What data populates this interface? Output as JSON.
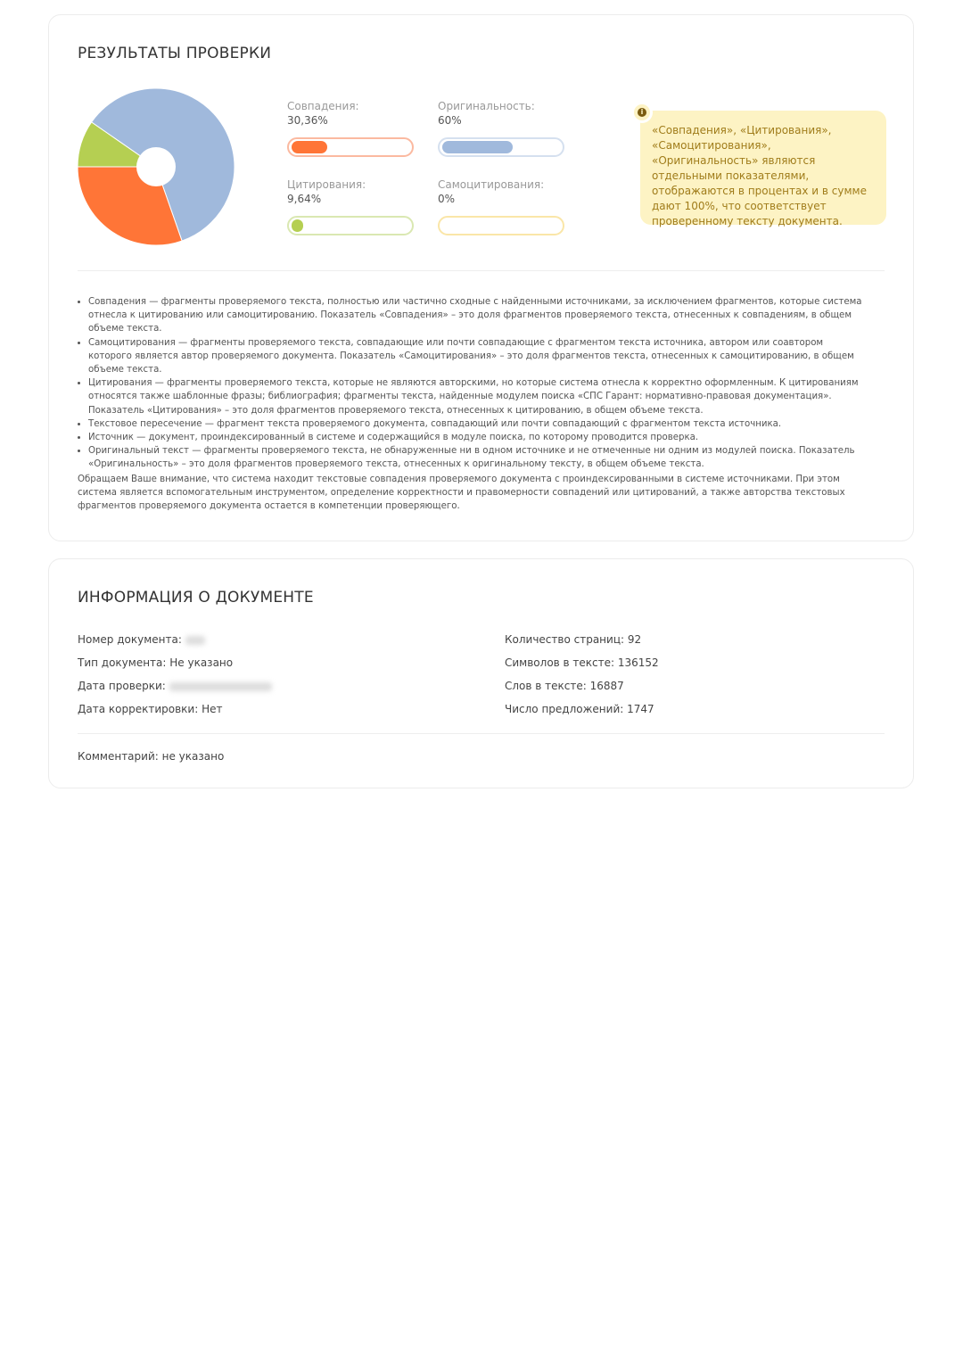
{
  "results": {
    "title": "РЕЗУЛЬТАТЫ ПРОВЕРКИ",
    "metrics": [
      {
        "label": "Совпадения:",
        "value": "30,36%",
        "percent": 30.36,
        "color": "#ff7537",
        "border": "#fbb9a0"
      },
      {
        "label": "Оригинальность:",
        "value": "60%",
        "percent": 60,
        "color": "#a0b9dc",
        "border": "#d5e0ef"
      },
      {
        "label": "Цитирования:",
        "value": "9,64%",
        "percent": 9.64,
        "color": "#b5cf52",
        "border": "#dae8b2"
      },
      {
        "label": "Самоцитирования:",
        "value": "0%",
        "percent": 0,
        "color": "#f7d46b",
        "border": "#fae6a8"
      }
    ],
    "note": "«Совпадения», «Цитирования», «Самоцитирования», «Оригинальность» являются отдельными показателями, отображаются в процентах и в сумме дают 100%, что соответствует проверенному тексту документа.",
    "note_icon": "info-icon",
    "definitions": [
      "Совпадения — фрагменты проверяемого текста, полностью или частично сходные с найденными источниками, за исключением фрагментов, которые система отнесла к цитированию или самоцитированию. Показатель «Совпадения» – это доля фрагментов проверяемого текста, отнесенных к совпадениям, в общем объеме текста.",
      "Самоцитирования — фрагменты проверяемого текста, совпадающие или почти совпадающие с фрагментом текста источника, автором или соавтором которого является автор проверяемого документа. Показатель «Самоцитирования» – это доля фрагментов текста, отнесенных к самоцитированию, в общем объеме текста.",
      "Цитирования — фрагменты проверяемого текста, которые не являются авторскими, но которые система отнесла к корректно оформленным. К цитированиям относятся также шаблонные фразы; библиография; фрагменты текста, найденные модулем поиска «СПС Гарант: нормативно-правовая документация». Показатель «Цитирования» – это доля фрагментов проверяемого текста, отнесенных к цитированию, в общем объеме текста.",
      "Текстовое пересечение — фрагмент текста проверяемого документа, совпадающий или почти совпадающий с фрагментом текста источника.",
      "Источник — документ, проиндексированный в системе и содержащийся в модуле поиска, по которому проводится проверка.",
      "Оригинальный текст — фрагменты проверяемого текста, не обнаруженные ни в одном источнике и не отмеченные ни одним из модулей поиска. Показатель «Оригинальность» – это доля фрагментов проверяемого текста, отнесенных к оригинальному тексту, в общем объеме текста."
    ],
    "attention": "Обращаем Ваше внимание, что система находит текстовые совпадения проверяемого документа с проиндексированными в системе источниками. При этом система является вспомогательным инструментом, определение корректности и правомерности совпадений или цитирований, а также авторства текстовых фрагментов проверяемого документа остается в компетенции проверяющего."
  },
  "document": {
    "title": "ИНФОРМАЦИЯ О ДОКУМЕНТЕ",
    "number_label": "Номер документа:",
    "type": "Тип документа: Не указано",
    "check_date_label": "Дата проверки:",
    "correction_date": "Дата корректировки: Нет",
    "pages": "Количество страниц: 92",
    "chars": "Символов в тексте: 136152",
    "words": "Слов в тексте: 16887",
    "sentences": "Число предложений: 1747",
    "comment": "Комментарий: не указано"
  }
}
